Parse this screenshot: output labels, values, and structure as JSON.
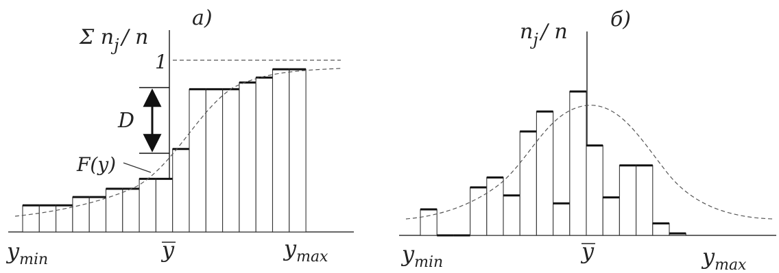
{
  "panel_a": {
    "label": "а)",
    "y_axis_label": "Σ n",
    "y_axis_sub": "j",
    "y_axis_den": "/ n",
    "one_label": "1",
    "D_label": "D",
    "F_label": "F(y)",
    "x_min_base": "y",
    "x_min_sub": "min",
    "x_mean": "y",
    "x_max_base": "y",
    "x_max_sub": "max"
  },
  "panel_b": {
    "label": "б)",
    "y_axis_label": "n",
    "y_axis_sub": "j",
    "y_axis_den": "/ n",
    "x_min_base": "y",
    "x_min_sub": "min",
    "x_mean": "y",
    "x_max_base": "y",
    "x_max_sub": "max"
  },
  "chart_data": [
    {
      "type": "bar",
      "panel": "а)",
      "description_kind": "cumulative relative frequency histogram",
      "ylabel": "Σ n_j / n",
      "values": [
        0.16,
        0.16,
        0.16,
        0.21,
        0.21,
        0.26,
        0.26,
        0.32,
        0.32,
        0.5,
        0.86,
        0.86,
        0.86,
        0.9,
        0.93,
        0.98,
        0.98
      ],
      "ylim": [
        0,
        1.08
      ]
    },
    {
      "type": "bar",
      "panel": "б)",
      "description_kind": "relative frequency histogram",
      "ylabel": "n_j / n",
      "values": [
        0.13,
        0.0,
        0.0,
        0.24,
        0.29,
        0.2,
        0.52,
        0.62,
        0.16,
        0.72,
        0.45,
        0.19,
        0.35,
        0.35,
        0.06,
        0.01
      ],
      "ylim": [
        0,
        1.0
      ]
    }
  ]
}
